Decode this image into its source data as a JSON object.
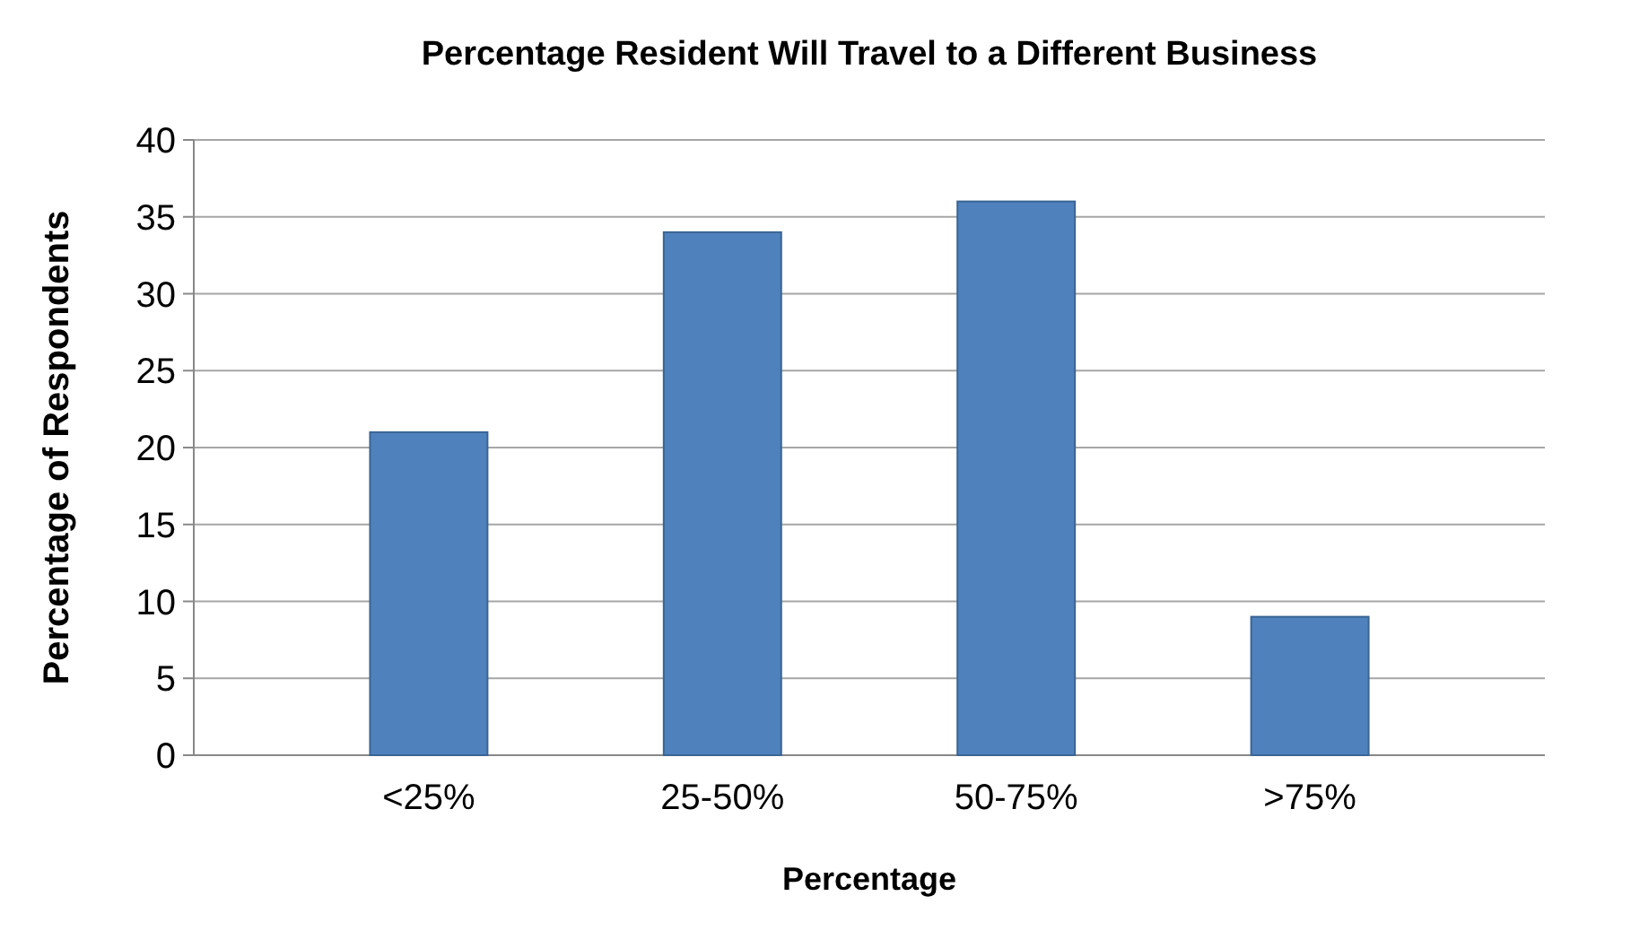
{
  "chart_data": {
    "type": "bar",
    "title": "Percentage Resident Will Travel to a Different Business",
    "xlabel": "Percentage",
    "ylabel": "Percentage of Respondents",
    "categories": [
      "<25%",
      "25-50%",
      "50-75%",
      ">75%"
    ],
    "values": [
      21,
      34,
      36,
      9
    ],
    "color": "#4f81bd",
    "ylim": [
      0,
      40
    ],
    "yticks": [
      0,
      5,
      10,
      15,
      20,
      25,
      30,
      35,
      40
    ],
    "grid": "y"
  }
}
